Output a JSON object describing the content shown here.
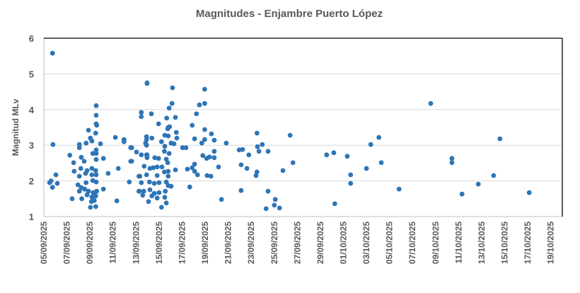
{
  "chart_data": {
    "type": "scatter",
    "title": "Magnitudes - Enjambre Puerto López",
    "xlabel": "",
    "ylabel": "Magnitud MLv",
    "xlim": [
      "2025-09-05",
      "2025-10-20"
    ],
    "ylim": [
      1,
      6
    ],
    "y_ticks": [
      "1",
      "2",
      "3",
      "4",
      "5",
      "6"
    ],
    "x_tick_labels": [
      "05/09/2025",
      "07/09/2025",
      "09/09/2025",
      "11/09/2025",
      "13/09/2025",
      "15/09/2025",
      "17/09/2025",
      "19/09/2025",
      "21/09/2025",
      "23/09/2025",
      "25/09/2025",
      "27/09/2025",
      "29/09/2025",
      "01/10/2025",
      "03/10/2025",
      "05/10/2025",
      "07/10/2025",
      "09/10/2025",
      "11/10/2025",
      "13/10/2025",
      "15/10/2025",
      "17/10/2025",
      "19/10/2025"
    ],
    "grid": "horizontal",
    "legend": "none",
    "marker_color": "#2e75b6",
    "points": [
      [
        "2025-09-05T18",
        5.58
      ],
      [
        "2025-09-05T19",
        3.02
      ],
      [
        "2025-09-05T15",
        2.0
      ],
      [
        "2025-09-06T01",
        2.17
      ],
      [
        "2025-09-05T18",
        1.82
      ],
      [
        "2025-09-06T04",
        1.93
      ],
      [
        "2025-09-05T12",
        1.95
      ],
      [
        "2025-09-09T13",
        4.11
      ],
      [
        "2025-09-09T13",
        3.84
      ],
      [
        "2025-09-09T13",
        3.6
      ],
      [
        "2025-09-09T14",
        3.56
      ],
      [
        "2025-09-08T21",
        3.42
      ],
      [
        "2025-09-09T12",
        3.34
      ],
      [
        "2025-09-09T01",
        3.2
      ],
      [
        "2025-09-09T04",
        3.12
      ],
      [
        "2025-09-08T16",
        3.06
      ],
      [
        "2025-09-08T02",
        3.02
      ],
      [
        "2025-09-09T22",
        3.04
      ],
      [
        "2025-09-08T02",
        2.93
      ],
      [
        "2025-09-07T06",
        2.72
      ],
      [
        "2025-09-09T13",
        2.87
      ],
      [
        "2025-09-09T06",
        2.77
      ],
      [
        "2025-09-09T13",
        2.77
      ],
      [
        "2025-09-08T06",
        2.66
      ],
      [
        "2025-09-08T12",
        2.55
      ],
      [
        "2025-09-10T04",
        2.63
      ],
      [
        "2025-09-09T13",
        2.6
      ],
      [
        "2025-09-07T14",
        2.51
      ],
      [
        "2025-09-08T05",
        2.35
      ],
      [
        "2025-09-08T18",
        2.29
      ],
      [
        "2025-09-07T15",
        2.27
      ],
      [
        "2025-09-09T04",
        2.35
      ],
      [
        "2025-09-09T12",
        2.29
      ],
      [
        "2025-09-08T15",
        2.21
      ],
      [
        "2025-09-08T02",
        2.13
      ],
      [
        "2025-09-10T14",
        2.21
      ],
      [
        "2025-09-11T11",
        2.35
      ],
      [
        "2025-09-09T04",
        2.17
      ],
      [
        "2025-09-09T13",
        2.17
      ],
      [
        "2025-09-08T16",
        1.95
      ],
      [
        "2025-09-07T23",
        1.89
      ],
      [
        "2025-09-09T06",
        2.01
      ],
      [
        "2025-09-09T13",
        1.97
      ],
      [
        "2025-09-08T06",
        1.81
      ],
      [
        "2025-09-08T13",
        1.77
      ],
      [
        "2025-09-08T21",
        1.71
      ],
      [
        "2025-09-08T02",
        1.71
      ],
      [
        "2025-09-09T07",
        1.67
      ],
      [
        "2025-09-09T14",
        1.71
      ],
      [
        "2025-09-10T04",
        1.77
      ],
      [
        "2025-09-08T18",
        1.61
      ],
      [
        "2025-09-09T04",
        1.55
      ],
      [
        "2025-09-09T12",
        1.58
      ],
      [
        "2025-09-07T11",
        1.5
      ],
      [
        "2025-09-08T07",
        1.5
      ],
      [
        "2025-09-09T03",
        1.42
      ],
      [
        "2025-09-09T09",
        1.45
      ],
      [
        "2025-09-09T01",
        1.26
      ],
      [
        "2025-09-09T12",
        1.28
      ],
      [
        "2025-09-11T08",
        1.44
      ],
      [
        "2025-09-11T05",
        3.22
      ],
      [
        "2025-09-11T23",
        3.16
      ],
      [
        "2025-09-11T23",
        3.1
      ],
      [
        "2025-09-12T13",
        2.93
      ],
      [
        "2025-09-12T13",
        2.55
      ],
      [
        "2025-09-12T10",
        1.97
      ],
      [
        "2025-09-13T23",
        4.75
      ],
      [
        "2025-09-13T23",
        4.73
      ],
      [
        "2025-09-16T04",
        4.61
      ],
      [
        "2025-09-18T23",
        4.57
      ],
      [
        "2025-09-16T03",
        4.17
      ],
      [
        "2025-09-15T21",
        4.04
      ],
      [
        "2025-09-18T12",
        4.13
      ],
      [
        "2025-09-18T23",
        4.17
      ],
      [
        "2025-09-13T11",
        3.92
      ],
      [
        "2025-09-13T11",
        3.8
      ],
      [
        "2025-09-14T08",
        3.88
      ],
      [
        "2025-09-18T06",
        3.88
      ],
      [
        "2025-09-15T16",
        3.76
      ],
      [
        "2025-09-16T10",
        3.78
      ],
      [
        "2025-09-14T23",
        3.6
      ],
      [
        "2025-09-17T21",
        3.56
      ],
      [
        "2025-09-15T19",
        3.5
      ],
      [
        "2025-09-15T22",
        3.52
      ],
      [
        "2025-09-15T18",
        3.46
      ],
      [
        "2025-09-18T23",
        3.44
      ],
      [
        "2025-09-16T12",
        3.36
      ],
      [
        "2025-09-13T22",
        3.24
      ],
      [
        "2025-09-13T22",
        3.16
      ],
      [
        "2025-09-13T20",
        3.06
      ],
      [
        "2025-09-13T22",
        3.0
      ],
      [
        "2025-09-14T09",
        3.2
      ],
      [
        "2025-09-15T12",
        3.28
      ],
      [
        "2025-09-15T19",
        3.26
      ],
      [
        "2025-09-16T13",
        3.2
      ],
      [
        "2025-09-18T02",
        3.18
      ],
      [
        "2025-09-18T23",
        3.16
      ],
      [
        "2025-09-19T13",
        3.32
      ],
      [
        "2025-09-19T19",
        3.14
      ],
      [
        "2025-09-18T17",
        3.06
      ],
      [
        "2025-09-15T05",
        3.1
      ],
      [
        "2025-09-16T01",
        3.06
      ],
      [
        "2025-09-16T07",
        3.04
      ],
      [
        "2025-09-15T12",
        2.97
      ],
      [
        "2025-09-17T01",
        2.93
      ],
      [
        "2025-09-17T08",
        2.93
      ],
      [
        "2025-09-12T15",
        2.93
      ],
      [
        "2025-09-13T01",
        2.81
      ],
      [
        "2025-09-13T11",
        2.73
      ],
      [
        "2025-09-13T22",
        2.73
      ],
      [
        "2025-09-15T11",
        2.83
      ],
      [
        "2025-09-15T21",
        2.77
      ],
      [
        "2025-09-19T19",
        2.83
      ],
      [
        "2025-09-14T15",
        2.65
      ],
      [
        "2025-09-14T23",
        2.63
      ],
      [
        "2025-09-15T15",
        2.61
      ],
      [
        "2025-09-13T23",
        2.65
      ],
      [
        "2025-09-18T19",
        2.71
      ],
      [
        "2025-09-19T03",
        2.63
      ],
      [
        "2025-09-19T09",
        2.67
      ],
      [
        "2025-09-19T19",
        2.65
      ],
      [
        "2025-09-12T15",
        2.55
      ],
      [
        "2025-09-15T18",
        2.51
      ],
      [
        "2025-09-13T17",
        2.41
      ],
      [
        "2025-09-14T12",
        2.37
      ],
      [
        "2025-09-14T20",
        2.39
      ],
      [
        "2025-09-15T06",
        2.39
      ],
      [
        "2025-09-14T05",
        2.35
      ],
      [
        "2025-09-16T10",
        2.31
      ],
      [
        "2025-09-17T11",
        2.33
      ],
      [
        "2025-09-18T02",
        2.47
      ],
      [
        "2025-09-17T21",
        2.37
      ],
      [
        "2025-09-15T11",
        2.25
      ],
      [
        "2025-09-15T19",
        2.27
      ],
      [
        "2025-09-20T04",
        2.39
      ],
      [
        "2025-09-18T02",
        2.27
      ],
      [
        "2025-09-18T08",
        2.17
      ],
      [
        "2025-09-15T19",
        2.13
      ],
      [
        "2025-09-13T06",
        2.13
      ],
      [
        "2025-09-13T22",
        2.17
      ],
      [
        "2025-09-14T20",
        2.15
      ],
      [
        "2025-09-19T04",
        2.15
      ],
      [
        "2025-09-19T12",
        2.13
      ],
      [
        "2025-09-13T11",
        1.95
      ],
      [
        "2025-09-14T04",
        1.97
      ],
      [
        "2025-09-14T14",
        1.93
      ],
      [
        "2025-09-15T00",
        1.95
      ],
      [
        "2025-09-15T15",
        1.97
      ],
      [
        "2025-09-15T19",
        1.87
      ],
      [
        "2025-09-16T01",
        1.85
      ],
      [
        "2025-09-17T16",
        1.83
      ],
      [
        "2025-09-14T05",
        1.75
      ],
      [
        "2025-09-13T07",
        1.71
      ],
      [
        "2025-09-13T16",
        1.71
      ],
      [
        "2025-09-14T14",
        1.65
      ],
      [
        "2025-09-15T00",
        1.67
      ],
      [
        "2025-09-15T13",
        1.71
      ],
      [
        "2025-09-14T09",
        1.58
      ],
      [
        "2025-09-14T20",
        1.52
      ],
      [
        "2025-09-15T12",
        1.54
      ],
      [
        "2025-09-14T02",
        1.42
      ],
      [
        "2025-09-15T15",
        1.38
      ],
      [
        "2025-09-15T05",
        1.26
      ],
      [
        "2025-09-13T08",
        2.13
      ],
      [
        "2025-09-13T06",
        1.71
      ],
      [
        "2025-09-13T14",
        1.6
      ],
      [
        "2025-09-13T23",
        2.73
      ],
      [
        "2025-09-20T10",
        1.48
      ],
      [
        "2025-09-20T20",
        3.06
      ],
      [
        "2025-09-21T23",
        2.87
      ],
      [
        "2025-09-22T06",
        2.88
      ],
      [
        "2025-09-22T19",
        2.73
      ],
      [
        "2025-09-22T03",
        2.45
      ],
      [
        "2025-09-22T15",
        2.35
      ],
      [
        "2025-09-22T03",
        1.73
      ],
      [
        "2025-09-23T12",
        3.34
      ],
      [
        "2025-09-23T13",
        2.96
      ],
      [
        "2025-09-23T23",
        3.02
      ],
      [
        "2025-09-23T16",
        2.83
      ],
      [
        "2025-09-24T11",
        2.83
      ],
      [
        "2025-09-23T12",
        2.25
      ],
      [
        "2025-09-23T10",
        2.15
      ],
      [
        "2025-09-24T11",
        1.71
      ],
      [
        "2025-09-25T02",
        1.48
      ],
      [
        "2025-09-25T00",
        1.32
      ],
      [
        "2025-09-25T11",
        1.24
      ],
      [
        "2025-09-24T07",
        1.22
      ],
      [
        "2025-09-25T18",
        2.29
      ],
      [
        "2025-09-26T09",
        3.28
      ],
      [
        "2025-09-26T15",
        2.51
      ],
      [
        "2025-09-29T13",
        2.73
      ],
      [
        "2025-09-30T04",
        2.79
      ],
      [
        "2025-09-30T06",
        1.36
      ],
      [
        "2025-10-01T08",
        2.69
      ],
      [
        "2025-10-01T15",
        2.17
      ],
      [
        "2025-10-01T15",
        1.93
      ],
      [
        "2025-10-03T00",
        2.35
      ],
      [
        "2025-10-03T09",
        3.02
      ],
      [
        "2025-10-04T02",
        3.22
      ],
      [
        "2025-10-04T07",
        2.51
      ],
      [
        "2025-10-05T20",
        1.77
      ],
      [
        "2025-10-08T14",
        4.17
      ],
      [
        "2025-10-10T10",
        2.63
      ],
      [
        "2025-10-10T10",
        2.51
      ],
      [
        "2025-10-11T07",
        1.63
      ],
      [
        "2025-10-12T17",
        1.91
      ],
      [
        "2025-10-14T01",
        2.15
      ],
      [
        "2025-10-14T14",
        3.18
      ],
      [
        "2025-10-17T03",
        1.67
      ]
    ]
  }
}
